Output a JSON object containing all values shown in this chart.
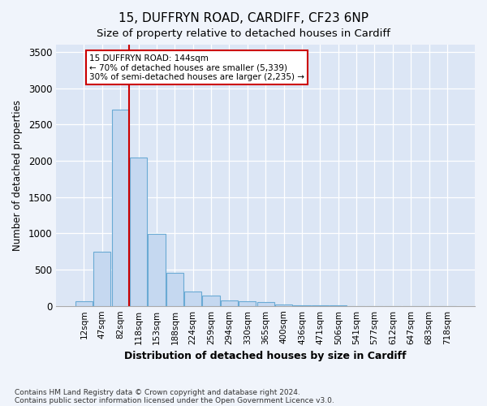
{
  "title1": "15, DUFFRYN ROAD, CARDIFF, CF23 6NP",
  "title2": "Size of property relative to detached houses in Cardiff",
  "xlabel": "Distribution of detached houses by size in Cardiff",
  "ylabel": "Number of detached properties",
  "categories": [
    "12sqm",
    "47sqm",
    "82sqm",
    "118sqm",
    "153sqm",
    "188sqm",
    "224sqm",
    "259sqm",
    "294sqm",
    "330sqm",
    "365sqm",
    "400sqm",
    "436sqm",
    "471sqm",
    "506sqm",
    "541sqm",
    "577sqm",
    "612sqm",
    "647sqm",
    "683sqm",
    "718sqm"
  ],
  "values": [
    60,
    750,
    2700,
    2050,
    990,
    450,
    200,
    140,
    80,
    60,
    50,
    20,
    10,
    8,
    5,
    2,
    1,
    0,
    0,
    0,
    0
  ],
  "bar_color": "#c5d8f0",
  "bar_edge_color": "#6aaad4",
  "property_line_x": 2.5,
  "property_line_color": "#cc0000",
  "annotation_text": "15 DUFFRYN ROAD: 144sqm\n← 70% of detached houses are smaller (5,339)\n30% of semi-detached houses are larger (2,235) →",
  "annotation_box_color": "#ffffff",
  "annotation_box_edge": "#cc0000",
  "ylim": [
    0,
    3600
  ],
  "yticks": [
    0,
    500,
    1000,
    1500,
    2000,
    2500,
    3000,
    3500
  ],
  "footnote1": "Contains HM Land Registry data © Crown copyright and database right 2024.",
  "footnote2": "Contains public sector information licensed under the Open Government Licence v3.0.",
  "fig_bg_color": "#f0f4fb",
  "plot_bg_color": "#dce6f5",
  "grid_color": "#ffffff",
  "title1_fontsize": 11,
  "title2_fontsize": 9.5
}
